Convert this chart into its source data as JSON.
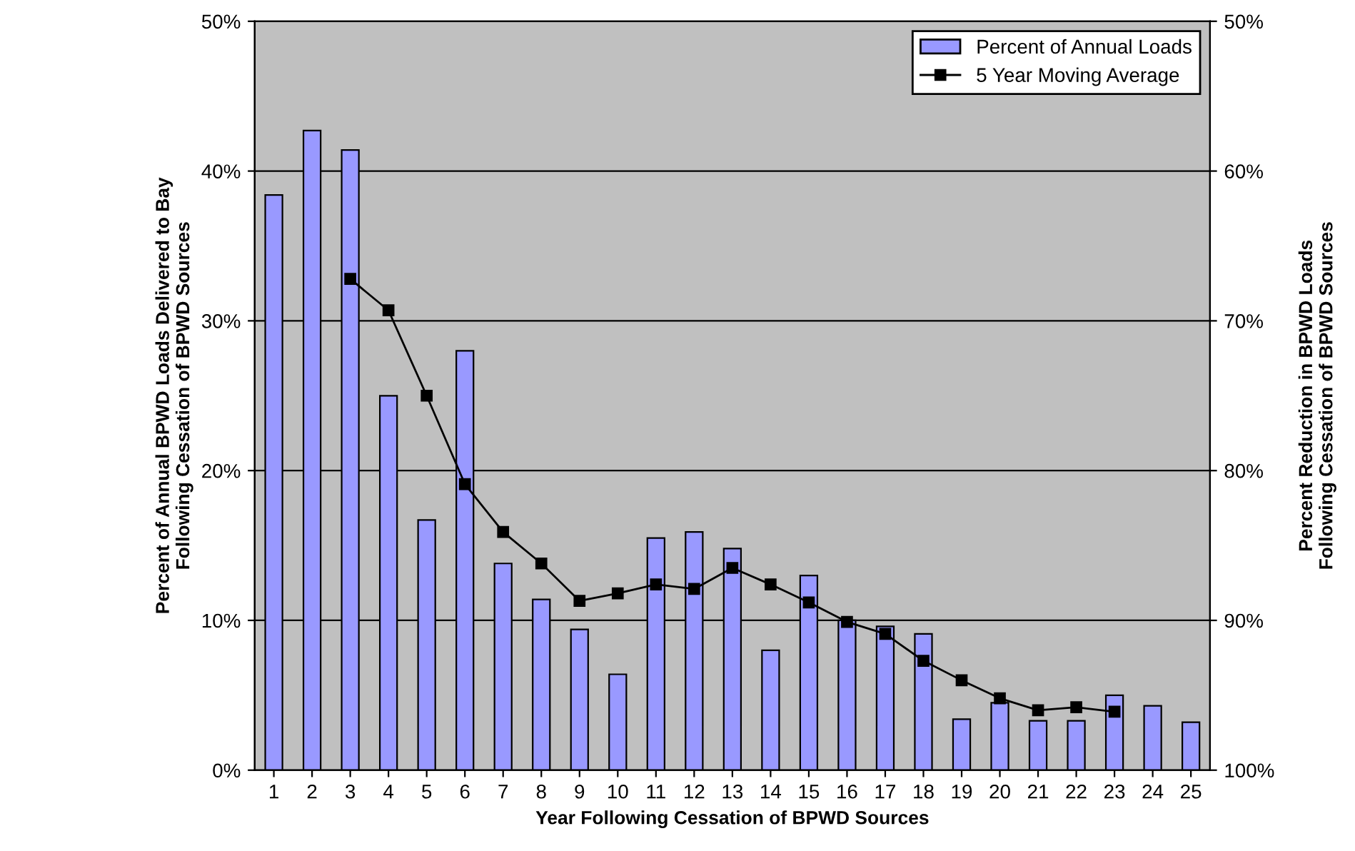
{
  "chart_data": {
    "type": "bar",
    "xlabel": "Year Following Cessation of BPWD Sources",
    "ylabel": "Percent of Annual BPWD Loads Delivered to Bay\nFollowing Cessation of BPWD Sources",
    "y2label": "Percent Reduction in BPWD Loads\nFollowing Cessation of BPWD Sources",
    "categories": [
      "1",
      "2",
      "3",
      "4",
      "5",
      "6",
      "7",
      "8",
      "9",
      "10",
      "11",
      "12",
      "13",
      "14",
      "15",
      "16",
      "17",
      "18",
      "19",
      "20",
      "21",
      "22",
      "23",
      "24",
      "25"
    ],
    "series": [
      {
        "name": "Percent of Annual Loads",
        "color": "#9999ff",
        "values": [
          38.4,
          42.7,
          41.4,
          25.0,
          16.7,
          28.0,
          13.8,
          11.4,
          9.4,
          6.4,
          15.5,
          15.9,
          14.8,
          8.0,
          13.0,
          10.0,
          9.6,
          9.1,
          3.4,
          4.5,
          3.3,
          3.3,
          5.0,
          4.3,
          3.2
        ]
      },
      {
        "name": "5 Year Moving Average",
        "type": "line",
        "color": "#000000",
        "marker": "square",
        "line_style": "solid",
        "values": [
          null,
          null,
          32.8,
          30.7,
          25.0,
          19.1,
          15.9,
          13.8,
          11.3,
          11.8,
          12.4,
          12.1,
          13.5,
          12.4,
          11.2,
          9.9,
          9.1,
          7.3,
          6.0,
          4.8,
          4.0,
          4.2,
          3.9,
          null,
          null
        ]
      }
    ],
    "ylim": [
      0,
      50
    ],
    "yticks": [
      {
        "value": 0,
        "label": "0%"
      },
      {
        "value": 10,
        "label": "10%"
      },
      {
        "value": 20,
        "label": "20%"
      },
      {
        "value": 30,
        "label": "30%"
      },
      {
        "value": 40,
        "label": "40%"
      },
      {
        "value": 50,
        "label": "50%"
      }
    ],
    "y2lim": [
      100,
      50
    ],
    "y2ticks": [
      {
        "value": 50,
        "label": "50%"
      },
      {
        "value": 60,
        "label": "60%"
      },
      {
        "value": 70,
        "label": "70%"
      },
      {
        "value": 80,
        "label": "80%"
      },
      {
        "value": 90,
        "label": "90%"
      },
      {
        "value": 100,
        "label": "100%"
      }
    ],
    "grid": "y",
    "legend": "top right"
  }
}
